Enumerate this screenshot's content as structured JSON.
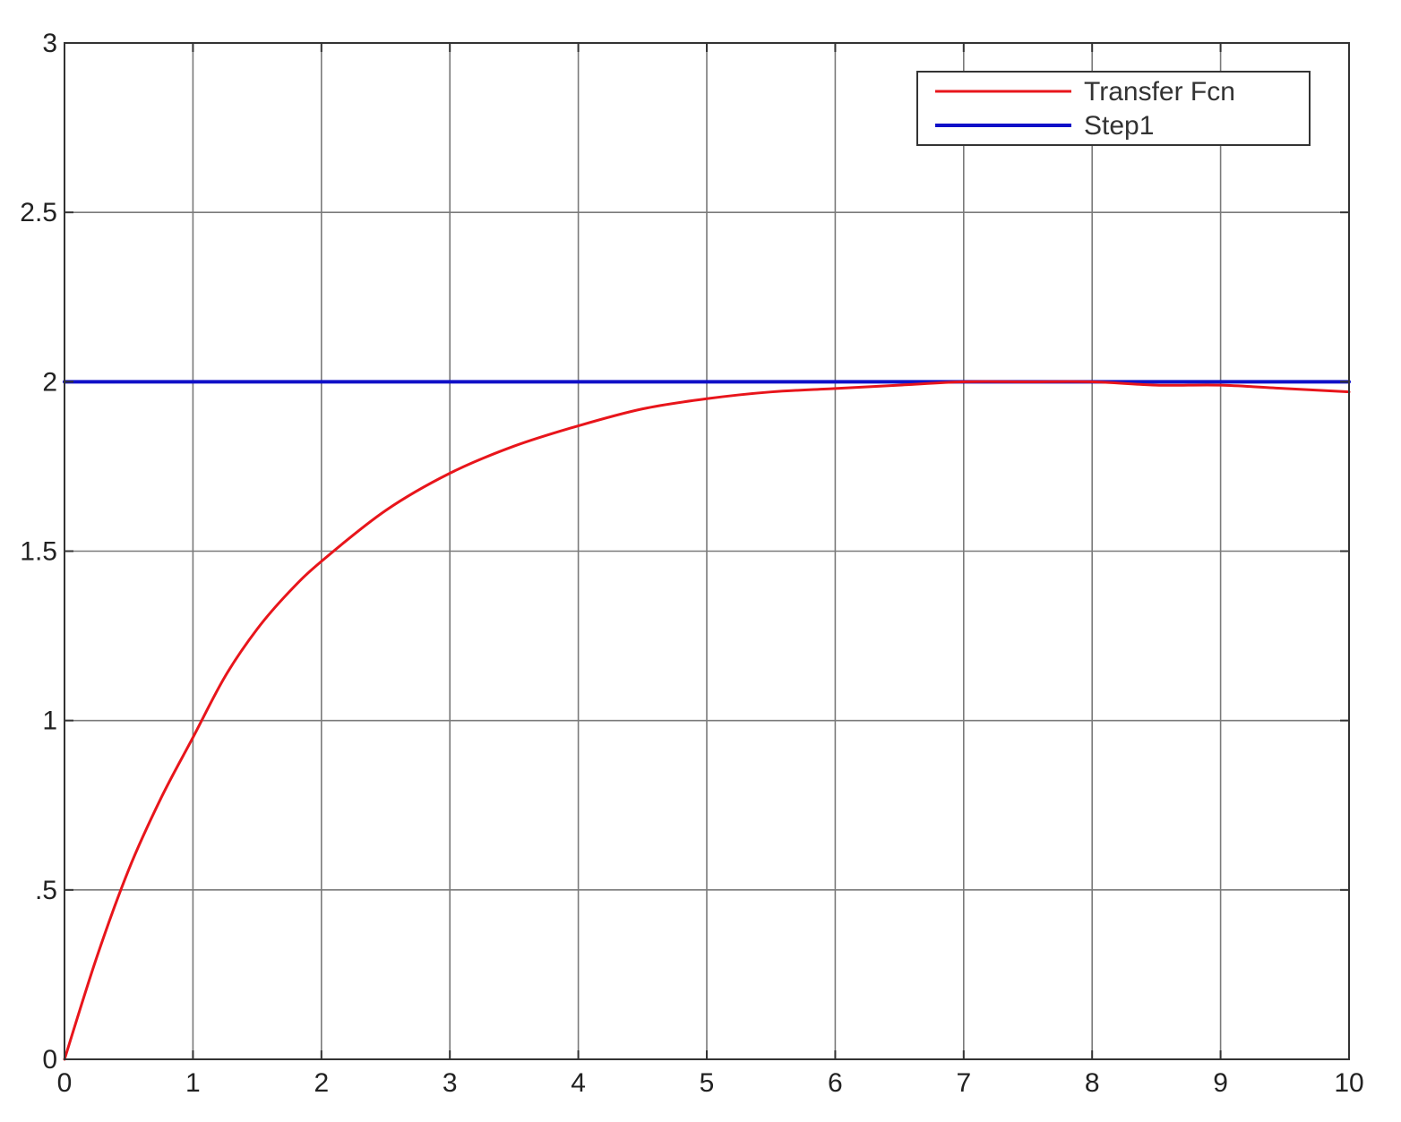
{
  "chart_data": {
    "type": "line",
    "title": "",
    "xlabel": "",
    "ylabel": "",
    "xlim": [
      0,
      10
    ],
    "ylim": [
      0,
      3
    ],
    "x_ticks": [
      "0",
      "1",
      "2",
      "3",
      "4",
      "5",
      "6",
      "7",
      "8",
      "9",
      "10"
    ],
    "y_ticks": [
      "0",
      ".5",
      "1",
      "1.5",
      "2",
      "2.5",
      "3"
    ],
    "grid": true,
    "legend_position": "top-right",
    "series": [
      {
        "name": "Transfer Fcn",
        "color": "#e8151b",
        "x": [
          0,
          0.25,
          0.5,
          0.75,
          1,
          1.25,
          1.5,
          1.75,
          2,
          2.5,
          3,
          3.5,
          4,
          4.5,
          5,
          5.5,
          6,
          6.5,
          7,
          7.5,
          8,
          8.5,
          9,
          9.5,
          10
        ],
        "values": [
          0,
          0.3,
          0.56,
          0.77,
          0.95,
          1.13,
          1.27,
          1.38,
          1.47,
          1.62,
          1.73,
          1.81,
          1.87,
          1.92,
          1.95,
          1.97,
          1.98,
          1.99,
          2.0,
          2.0,
          2.0,
          1.99,
          1.99,
          1.98,
          1.97
        ]
      },
      {
        "name": "Step1",
        "color": "#1010c8",
        "x": [
          0,
          10
        ],
        "values": [
          2,
          2
        ]
      }
    ]
  }
}
